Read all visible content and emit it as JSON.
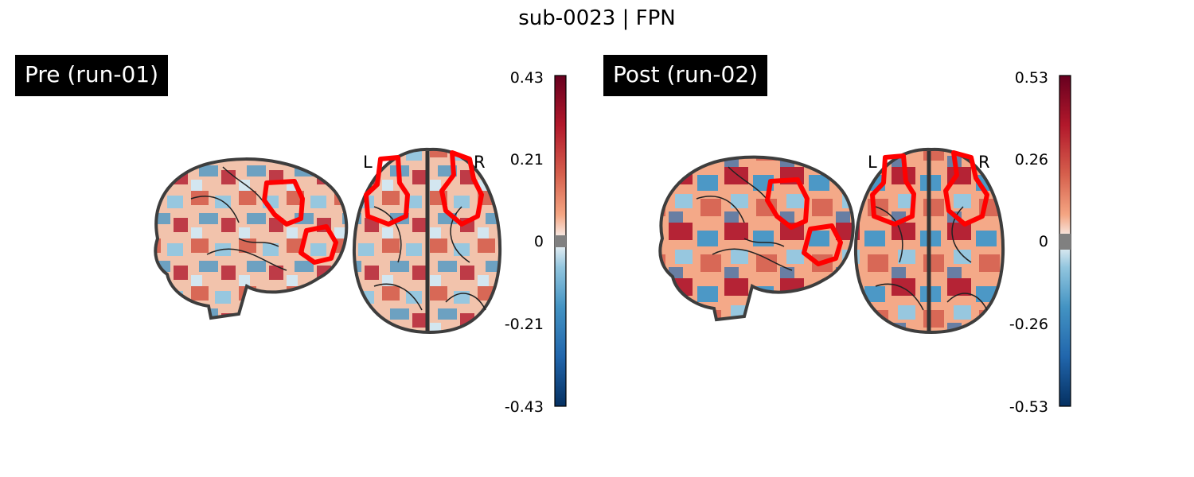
{
  "figure": {
    "title": "sub-0023 | FPN"
  },
  "panels": [
    {
      "label": "Pre (run-01)",
      "side_left": "L",
      "side_right": "R",
      "colorbar": {
        "ticks": [
          "0.43",
          "0.21",
          "0",
          "-0.21",
          "-0.43"
        ],
        "vmax": 0.43,
        "vmin": -0.43
      }
    },
    {
      "label": "Post (run-02)",
      "side_left": "L",
      "side_right": "R",
      "colorbar": {
        "ticks": [
          "0.53",
          "0.26",
          "0",
          "-0.26",
          "-0.53"
        ],
        "vmax": 0.53,
        "vmin": -0.53
      }
    }
  ],
  "colors": {
    "cmap_low": "#053061",
    "cmap_mid": "#f7f7f7",
    "cmap_high": "#67001f",
    "roi_outline": "#ff0000",
    "threshold_band": "#808080"
  },
  "icons": {
    "sagittal_view": "brain-sagittal-icon",
    "axial_view": "brain-axial-icon"
  }
}
